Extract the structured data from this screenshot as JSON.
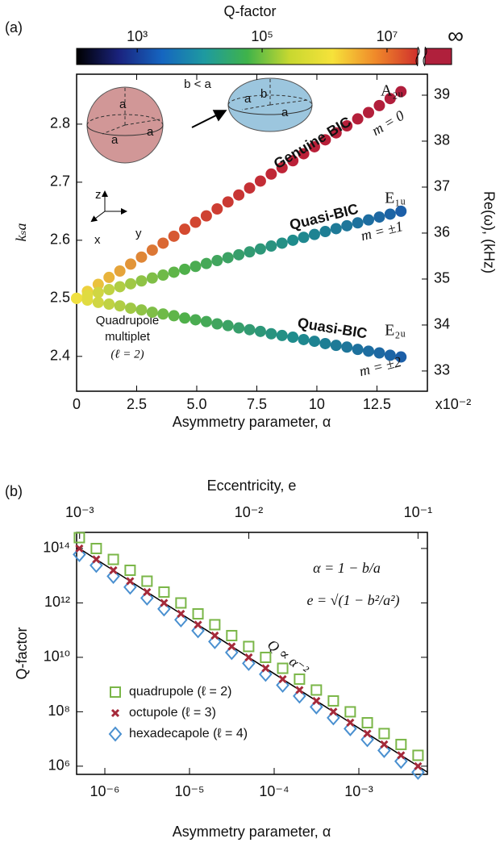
{
  "chart_data": [
    {
      "type": "scatter",
      "panel_label": "(a)",
      "x_label": "Asymmetry parameter, α",
      "x_unit": "x10⁻²",
      "y_label": "kₛa",
      "y2_label": "Re(ω), (kHz)",
      "xlim": [
        0,
        14.6
      ],
      "ylim": [
        2.34,
        2.886
      ],
      "y2lim": [
        32.56,
        39.456
      ],
      "xticks": [
        0,
        2.5,
        {
          "value": 5,
          "label": "5.0"
        },
        7.5,
        10,
        12.5
      ],
      "yticks": [
        2.4,
        2.5,
        2.6,
        2.7,
        2.8
      ],
      "y2ticks": [
        33,
        34,
        35,
        36,
        37,
        38,
        39
      ],
      "colorbar": {
        "label": "Q-factor",
        "log": true,
        "lim": [
          107,
          31000000
        ],
        "ticks": [
          {
            "value": 1000,
            "label": "10³"
          },
          {
            "value": 100000,
            "label": "10⁵"
          },
          {
            "value": 10000000,
            "label": "10⁷"
          }
        ],
        "infinity_label": "∞",
        "infinity_color": "#b0203c",
        "colors": [
          "#000000",
          "#1a237e",
          "#1565c0",
          "#1e9aa0",
          "#3fb34a",
          "#c8d830",
          "#f6e23a",
          "#f08a2a",
          "#d0302c"
        ]
      },
      "x": [
        0,
        0.45,
        0.9,
        1.35,
        1.8,
        2.25,
        2.7,
        3.15,
        3.6,
        4.05,
        4.5,
        4.95,
        5.4,
        5.85,
        6.3,
        6.75,
        7.2,
        7.65,
        8.1,
        8.55,
        9,
        9.45,
        9.9,
        10.35,
        10.8,
        11.25,
        11.7,
        12.15,
        12.6,
        13.05,
        13.5
      ],
      "series": [
        {
          "name": "Genuine BIC",
          "irrep": "A₂ᵤ",
          "label": "m = 0",
          "colors": [
            "#f0e040",
            "#d44a30",
            "#bb2038",
            "#b01e3c"
          ],
          "values": [
            2.5,
            2.512,
            2.524,
            2.536,
            2.547,
            2.559,
            2.571,
            2.583,
            2.595,
            2.607,
            2.619,
            2.631,
            2.642,
            2.654,
            2.666,
            2.678,
            2.69,
            2.702,
            2.714,
            2.725,
            2.737,
            2.749,
            2.761,
            2.773,
            2.785,
            2.797,
            2.809,
            2.82,
            2.832,
            2.844,
            2.856
          ]
        },
        {
          "name": "Quasi-BIC",
          "irrep": "E₁ᵤ",
          "label": "m = ±1",
          "colors": [
            "#f0e040",
            "#4fb04a",
            "#1f8c8c",
            "#1c5fa8"
          ],
          "values": [
            2.5,
            2.505,
            2.51,
            2.515,
            2.52,
            2.525,
            2.53,
            2.535,
            2.54,
            2.545,
            2.55,
            2.555,
            2.56,
            2.565,
            2.57,
            2.575,
            2.58,
            2.585,
            2.59,
            2.595,
            2.6,
            2.605,
            2.61,
            2.615,
            2.62,
            2.625,
            2.63,
            2.635,
            2.64,
            2.645,
            2.65
          ]
        },
        {
          "name": "Quasi-BIC",
          "irrep": "E₂ᵤ",
          "label": "m = ±2",
          "colors": [
            "#f0e040",
            "#4fb04a",
            "#1f8c8c",
            "#1c5fa8"
          ],
          "values": [
            2.5,
            2.497,
            2.493,
            2.49,
            2.487,
            2.483,
            2.48,
            2.476,
            2.473,
            2.47,
            2.466,
            2.463,
            2.46,
            2.456,
            2.453,
            2.449,
            2.446,
            2.443,
            2.439,
            2.436,
            2.433,
            2.429,
            2.426,
            2.422,
            2.419,
            2.416,
            2.412,
            2.409,
            2.406,
            2.402,
            2.399
          ]
        }
      ],
      "multiplet_label": [
        "Quadrupole",
        "multiplet",
        "(ℓ = 2)"
      ],
      "inset": {
        "relation": "b < a",
        "left_sphere": [
          "a",
          "a",
          "a"
        ],
        "right_spheroid": [
          "a",
          "b",
          "a"
        ],
        "axes": [
          "z",
          "y",
          "x"
        ]
      }
    },
    {
      "type": "scatter",
      "panel_label": "(b)",
      "log_x": true,
      "log_y": true,
      "x_label": "Asymmetry parameter, α",
      "y_label": "Q-factor",
      "top_label": "Eccentricity, e",
      "xlim": [
        4.64e-07,
        0.00645
      ],
      "ylim": [
        500000,
        390000000000000
      ],
      "toplim": [
        0.00096,
        0.1136
      ],
      "xticks": [
        {
          "value": 1e-06,
          "label": "10⁻⁶"
        },
        {
          "value": 1e-05,
          "label": "10⁻⁵"
        },
        {
          "value": 0.0001,
          "label": "10⁻⁴"
        },
        {
          "value": 0.001,
          "label": "10⁻³"
        }
      ],
      "topticks": [
        {
          "value": 0.001,
          "label": "10⁻³"
        },
        {
          "value": 0.01,
          "label": "10⁻²"
        },
        {
          "value": 0.1,
          "label": "10⁻¹"
        }
      ],
      "yticks": [
        {
          "value": 1000000,
          "label": "10⁶"
        },
        {
          "value": 100000000,
          "label": "10⁸"
        },
        {
          "value": 10000000000,
          "label": "10¹⁰"
        },
        {
          "value": 1000000000000,
          "label": "10¹²"
        },
        {
          "value": 100000000000000,
          "label": "10¹⁴"
        }
      ],
      "x": [
        5e-07,
        7.92e-07,
        1.26e-06,
        1.99e-06,
        3.15e-06,
        5e-06,
        7.92e-06,
        1.26e-05,
        1.99e-05,
        3.15e-05,
        5e-05,
        7.92e-05,
        0.000126,
        0.000199,
        0.000315,
        0.0005,
        0.000792,
        0.00126,
        0.00199,
        0.00315,
        0.005
      ],
      "series": [
        {
          "name": "quadrupole (ℓ = 2)",
          "marker": "square",
          "color": "#7ab648",
          "values": [
            250000000000000,
            99500000000000,
            39500000000000,
            15800000000000,
            6280000000000,
            2500000000000,
            995000000000,
            395000000000,
            158000000000,
            62800000000,
            25000000000,
            9950000000,
            3950000000,
            1580000000,
            628000000,
            250000000,
            99500000,
            39500000,
            15800000,
            6280000,
            2500000
          ]
        },
        {
          "name": "hexadecapole (ℓ = 4)",
          "marker": "diamond",
          "color": "#4a90d0",
          "values": [
            60000000000000,
            23900000000000,
            9500000000000,
            3790000000000,
            1510000000000,
            600000000000,
            239000000000,
            95000000000,
            37900000000,
            15100000000,
            6000000000,
            2390000000,
            950000000,
            379000000,
            151000000,
            60000000,
            23900000,
            9500000,
            3790000,
            1510000,
            600000
          ]
        },
        {
          "name": "octupole (ℓ = 3)",
          "marker": "cross",
          "color": "#a52a3a",
          "values": [
            100000000000000,
            39800000000000,
            15800000000000,
            6310000000000,
            2510000000000,
            1000000000000,
            398000000000,
            158000000000,
            63100000000,
            25100000000,
            10000000000,
            3980000000,
            1580000000,
            631000000,
            251000000,
            100000000,
            39800000,
            15800000,
            6310000,
            2510000,
            1000000
          ]
        }
      ],
      "legend_order": [
        0,
        2,
        1
      ],
      "fit": {
        "label": "Q ∝ α⁻²",
        "color": "#000000",
        "x": [
          4.64e-07,
          0.00645
        ],
        "values": [
          116000000000000,
          601000
        ]
      },
      "annotations": [
        "α = 1 − b/a",
        "e = √(1 − b²/a²)"
      ]
    }
  ]
}
